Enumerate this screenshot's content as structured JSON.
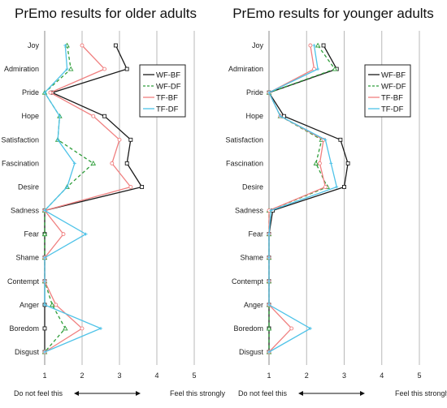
{
  "chart_data": [
    {
      "type": "line",
      "title": "PrEmo results for older adults",
      "categories": [
        "Joy",
        "Admiration",
        "Pride",
        "Hope",
        "Satisfaction",
        "Fascination",
        "Desire",
        "Sadness",
        "Fear",
        "Shame",
        "Contempt",
        "Anger",
        "Boredom",
        "Disgust"
      ],
      "x_ticks": [
        "1",
        "2",
        "3",
        "4",
        "5"
      ],
      "xlim": [
        1,
        5
      ],
      "grid": true,
      "legend_position": "right-top",
      "axis_left_label": "Do not feel this",
      "axis_right_label": "Feel this strongly",
      "series": [
        {
          "name": "WF-BF",
          "values": [
            2.9,
            3.2,
            1.2,
            2.6,
            3.3,
            3.2,
            3.6,
            1.0,
            1.0,
            1.0,
            1.0,
            1.0,
            1.0,
            1.0
          ]
        },
        {
          "name": "WF-DF",
          "values": [
            1.6,
            1.7,
            1.0,
            1.4,
            1.35,
            2.3,
            1.6,
            1.0,
            1.0,
            1.0,
            1.0,
            1.2,
            1.55,
            1.0
          ]
        },
        {
          "name": "TF-BF",
          "values": [
            2.0,
            2.6,
            1.15,
            2.3,
            3.0,
            2.8,
            3.3,
            1.0,
            1.5,
            1.0,
            1.0,
            1.3,
            2.0,
            1.0
          ]
        },
        {
          "name": "TF-DF",
          "values": [
            1.55,
            1.6,
            1.0,
            1.4,
            1.35,
            1.8,
            1.6,
            1.0,
            2.1,
            1.0,
            1.0,
            1.0,
            2.5,
            1.0
          ]
        }
      ]
    },
    {
      "type": "line",
      "title": "PrEmo results for younger adults",
      "categories": [
        "Joy",
        "Admiration",
        "Pride",
        "Hope",
        "Satisfaction",
        "Fascination",
        "Desire",
        "Sadness",
        "Fear",
        "Shame",
        "Contempt",
        "Anger",
        "Boredom",
        "Disgust"
      ],
      "x_ticks": [
        "1",
        "2",
        "3",
        "4",
        "5"
      ],
      "xlim": [
        1,
        5
      ],
      "grid": true,
      "legend_position": "right-top",
      "axis_left_label": "Do not feel this",
      "axis_right_label": "Feel this strongly",
      "series": [
        {
          "name": "WF-BF",
          "values": [
            2.45,
            2.8,
            1.0,
            1.4,
            2.9,
            3.1,
            3.0,
            1.1,
            1.0,
            1.0,
            1.0,
            1.0,
            1.0,
            1.0
          ]
        },
        {
          "name": "WF-DF",
          "values": [
            2.3,
            2.75,
            1.0,
            1.3,
            2.4,
            2.25,
            2.55,
            1.0,
            1.0,
            1.0,
            1.0,
            1.0,
            1.0,
            1.0
          ]
        },
        {
          "name": "TF-BF",
          "values": [
            2.1,
            2.2,
            1.0,
            1.3,
            2.45,
            2.35,
            2.5,
            1.0,
            1.0,
            1.0,
            1.0,
            1.0,
            1.6,
            1.0
          ]
        },
        {
          "name": "TF-DF",
          "values": [
            2.2,
            2.3,
            1.0,
            1.3,
            2.5,
            2.65,
            2.8,
            1.05,
            1.0,
            1.0,
            1.0,
            1.0,
            2.1,
            1.0
          ]
        }
      ]
    }
  ],
  "series_styles": {
    "WF-BF": {
      "color": "#1a1a1a",
      "dash": "solid",
      "marker": "square"
    },
    "WF-DF": {
      "color": "#2e9e3a",
      "dash": "dashed",
      "marker": "triangle"
    },
    "TF-BF": {
      "color": "#f08080",
      "dash": "solid",
      "marker": "circle"
    },
    "TF-DF": {
      "color": "#4fc3e8",
      "dash": "solid",
      "marker": "cross"
    }
  }
}
